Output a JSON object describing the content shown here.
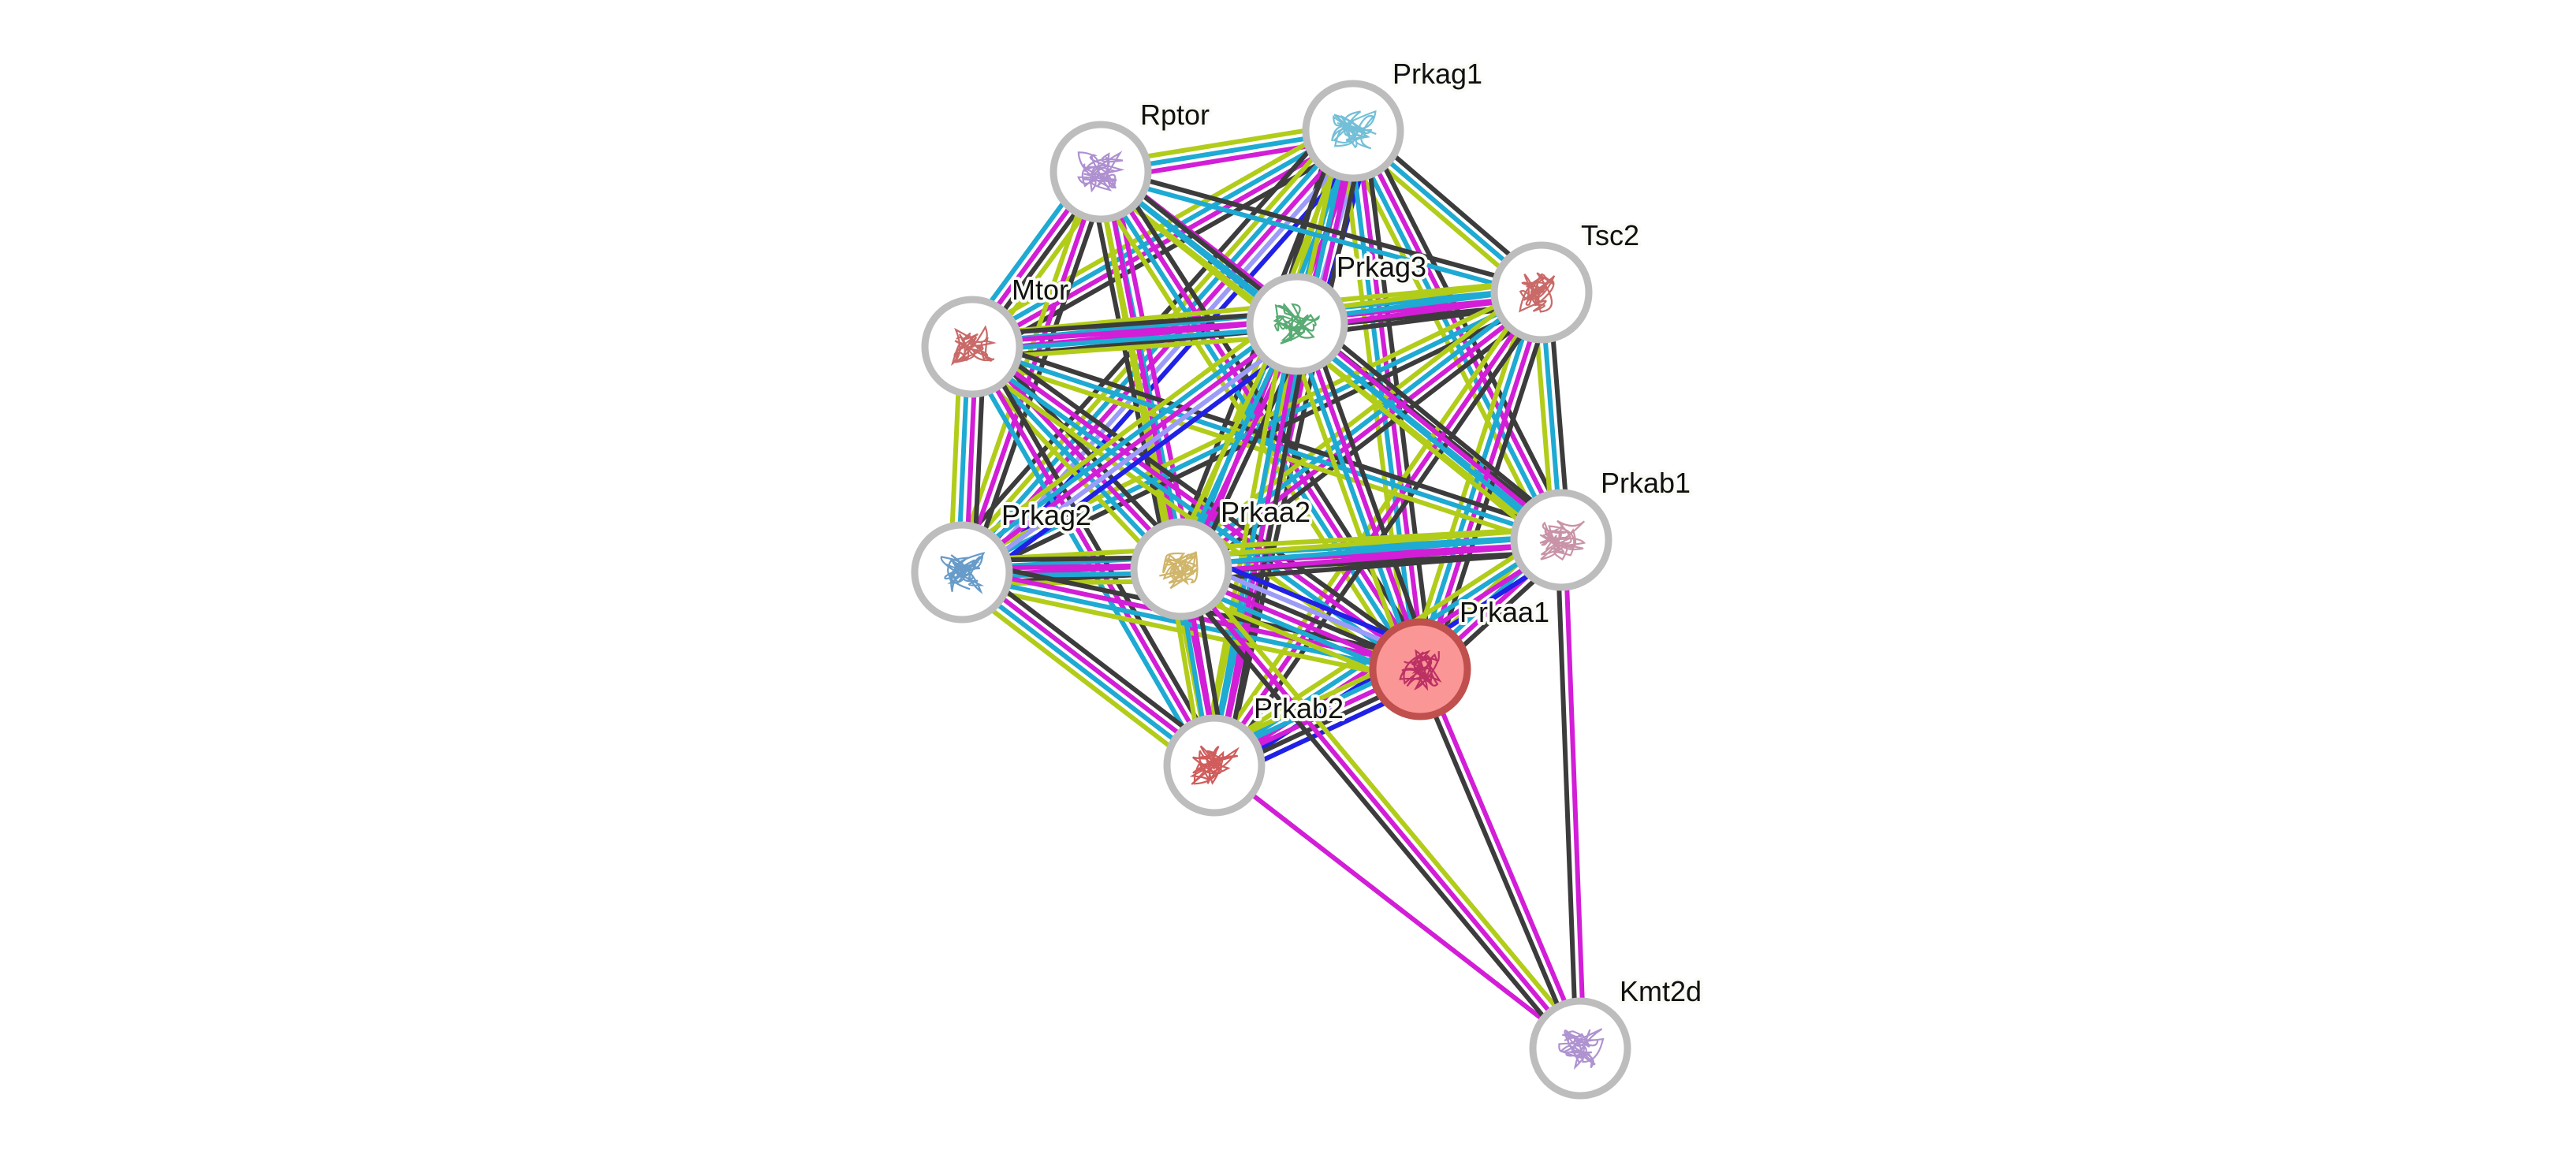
{
  "evidence_colors": {
    "k": "#3c3c3c",
    "m": "#d21ed6",
    "c": "#1eaad2",
    "y": "#b2cc1a",
    "b": "#2020e6",
    "h": "#9c9cf8"
  },
  "query_node": "Prkaa1",
  "nodes": [
    {
      "name": "Prkag1",
      "structure_color": "#5ab4d0"
    },
    {
      "name": "Rptor",
      "structure_color": "#a07cc8"
    },
    {
      "name": "Tsc2",
      "structure_color": "#c0504d"
    },
    {
      "name": "Mtor",
      "structure_color": "#c0504d"
    },
    {
      "name": "Prkag3",
      "structure_color": "#3c9c5a"
    },
    {
      "name": "Prkab1",
      "structure_color": "#c08098"
    },
    {
      "name": "Prkag2",
      "structure_color": "#4c8ac0"
    },
    {
      "name": "Prkaa2",
      "structure_color": "#c8a850"
    },
    {
      "name": "Prkaa1",
      "structure_color": "#b0205a"
    },
    {
      "name": "Prkab2",
      "structure_color": "#c84040"
    },
    {
      "name": "Kmt2d",
      "structure_color": "#a080c8"
    }
  ],
  "edges": [
    [
      "Prkag1",
      "Rptor",
      "mcy"
    ],
    [
      "Prkag1",
      "Tsc2",
      "kcy"
    ],
    [
      "Prkag1",
      "Mtor",
      "kmcy"
    ],
    [
      "Prkag1",
      "Prkag3",
      "bhmcyk"
    ],
    [
      "Prkag1",
      "Prkab1",
      "kmcy"
    ],
    [
      "Prkag1",
      "Prkag2",
      "bhmcyk"
    ],
    [
      "Prkag1",
      "Prkaa2",
      "mcyk"
    ],
    [
      "Prkag1",
      "Prkaa1",
      "kmcy"
    ],
    [
      "Prkag1",
      "Prkab2",
      "kmcy"
    ],
    [
      "Rptor",
      "Tsc2",
      "kc"
    ],
    [
      "Rptor",
      "Mtor",
      "ykmc"
    ],
    [
      "Rptor",
      "Prkag3",
      "mcy"
    ],
    [
      "Rptor",
      "Prkab1",
      "kcy"
    ],
    [
      "Rptor",
      "Prkag2",
      "kmy"
    ],
    [
      "Rptor",
      "Prkaa2",
      "mcyk"
    ],
    [
      "Rptor",
      "Prkaa1",
      "kmcy"
    ],
    [
      "Rptor",
      "Prkab2",
      "my"
    ],
    [
      "Tsc2",
      "Mtor",
      "kmcy"
    ],
    [
      "Tsc2",
      "Prkag3",
      "kmcy"
    ],
    [
      "Tsc2",
      "Prkab1",
      "kcy"
    ],
    [
      "Tsc2",
      "Prkag2",
      "kcy"
    ],
    [
      "Tsc2",
      "Prkaa2",
      "kmcy"
    ],
    [
      "Tsc2",
      "Prkaa1",
      "kmcy"
    ],
    [
      "Tsc2",
      "Prkab2",
      "kmy"
    ],
    [
      "Mtor",
      "Prkag3",
      "kmcy"
    ],
    [
      "Mtor",
      "Prkab1",
      "kcy"
    ],
    [
      "Mtor",
      "Prkag2",
      "kmcy"
    ],
    [
      "Mtor",
      "Prkaa2",
      "kmcy"
    ],
    [
      "Mtor",
      "Prkaa1",
      "kmcy"
    ],
    [
      "Mtor",
      "Prkab2",
      "kmc"
    ],
    [
      "Prkag3",
      "Prkab1",
      "kmcy"
    ],
    [
      "Prkag3",
      "Prkag2",
      "bhmcy"
    ],
    [
      "Prkag3",
      "Prkaa2",
      "kmcy"
    ],
    [
      "Prkag3",
      "Prkaa1",
      "kmcy"
    ],
    [
      "Prkag3",
      "Prkab2",
      "kmcy"
    ],
    [
      "Prkab1",
      "Prkag2",
      "kmcy"
    ],
    [
      "Prkab1",
      "Prkaa2",
      "kmcy"
    ],
    [
      "Prkab1",
      "Prkaa1",
      "kmcy"
    ],
    [
      "Prkab1",
      "Prkab2",
      "bmcy"
    ],
    [
      "Prkag2",
      "Prkaa2",
      "kmcy"
    ],
    [
      "Prkag2",
      "Prkaa1",
      "kmcy"
    ],
    [
      "Prkag2",
      "Prkab2",
      "kmcy"
    ],
    [
      "Prkaa2",
      "Prkaa1",
      "bhkmcy"
    ],
    [
      "Prkaa2",
      "Prkab2",
      "kmcy"
    ],
    [
      "Prkaa1",
      "Prkab2",
      "bkmcy"
    ],
    [
      "Kmt2d",
      "Prkab2",
      "m"
    ],
    [
      "Kmt2d",
      "Prkaa2",
      "kmy"
    ],
    [
      "Kmt2d",
      "Prkaa1",
      "km"
    ],
    [
      "Kmt2d",
      "Prkab1",
      "km"
    ]
  ]
}
